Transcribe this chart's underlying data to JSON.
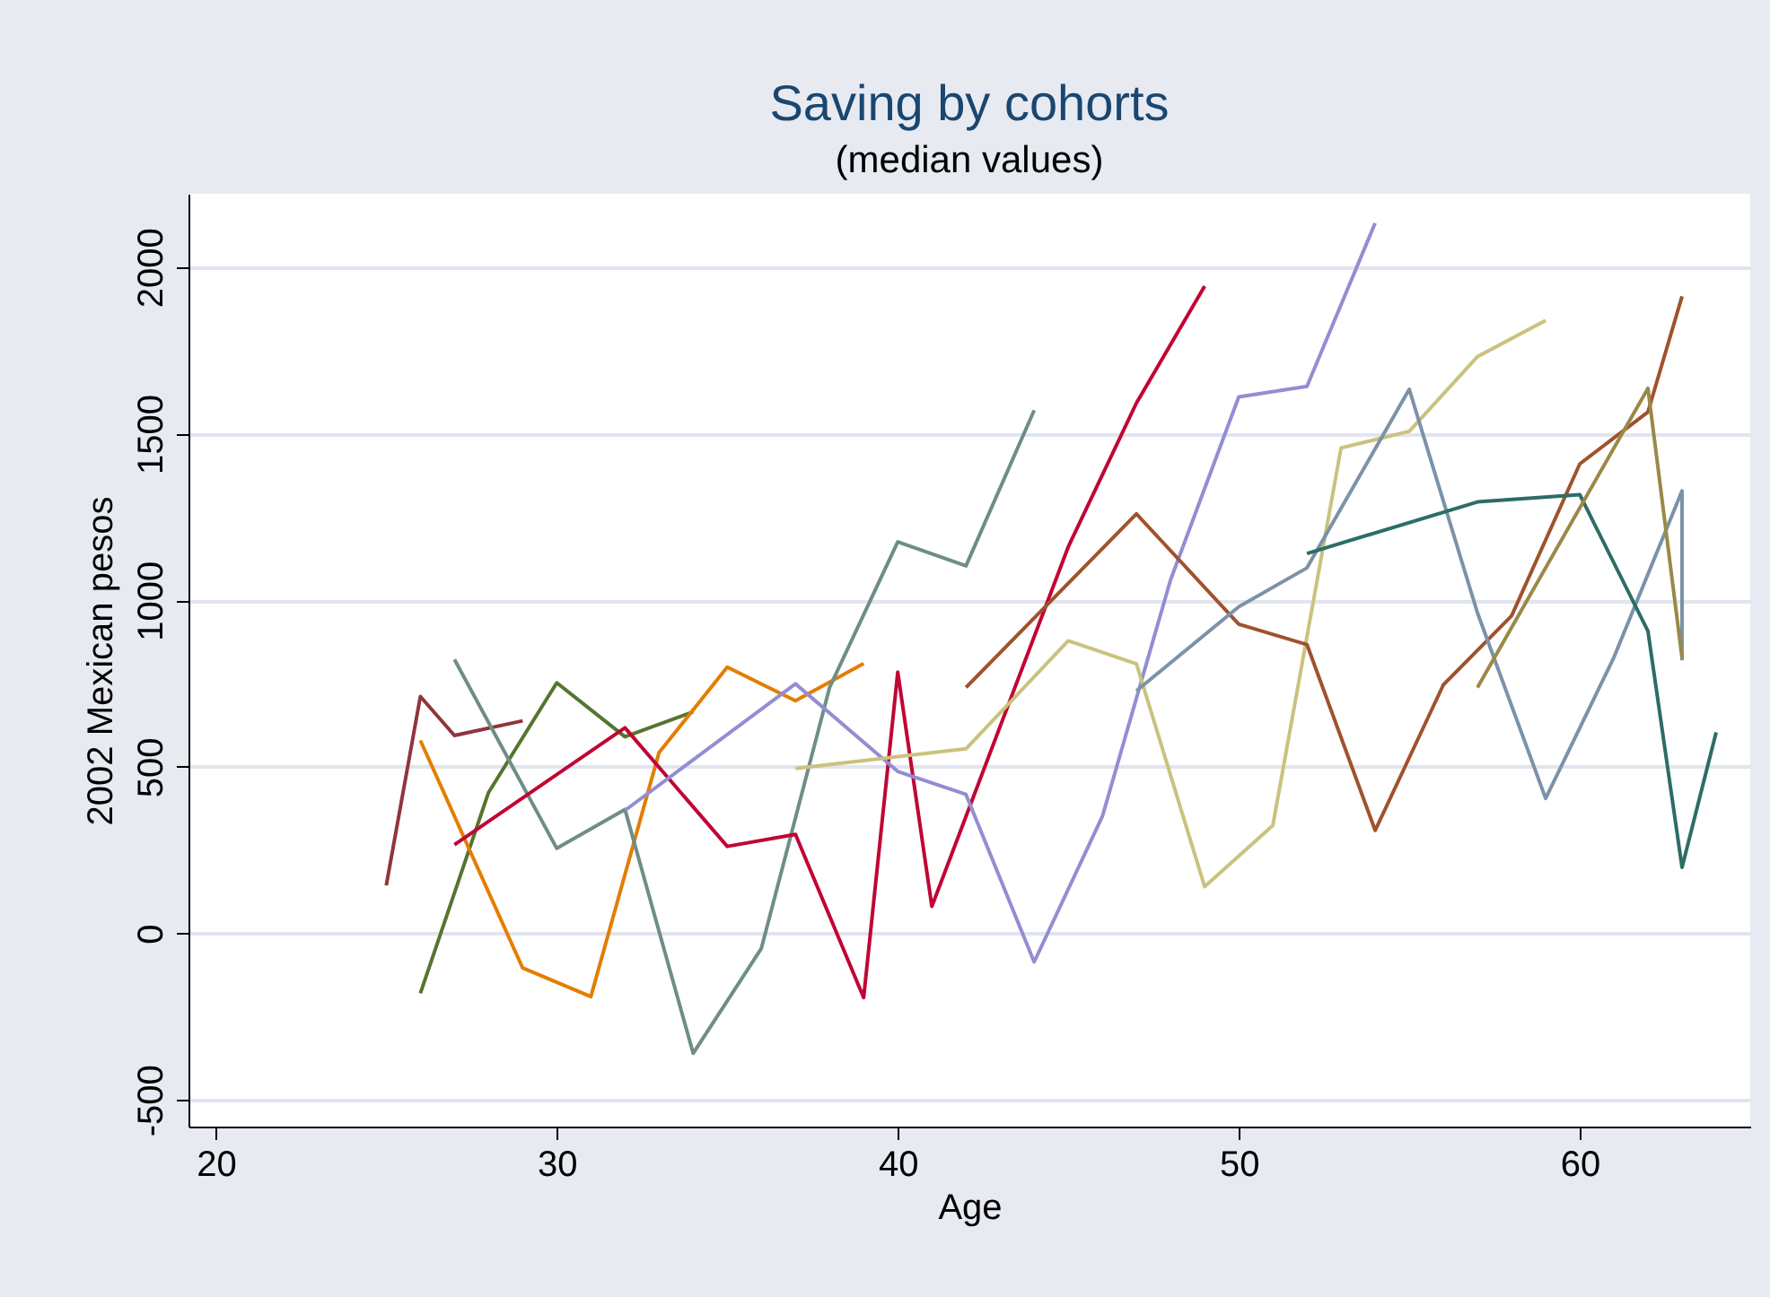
{
  "chart_data": {
    "type": "line",
    "title": "Saving by cohorts",
    "subtitle": "(median values)",
    "xlabel": "Age",
    "ylabel": "2002 Mexican pesos",
    "xlim": [
      19.2,
      65
    ],
    "xticks": [
      20,
      30,
      40,
      50,
      60
    ],
    "ylim": [
      -580,
      2220
    ],
    "yticks": [
      -500,
      0,
      500,
      1000,
      1500,
      2000
    ],
    "grid": "y",
    "legend": false,
    "series": [
      {
        "color": "#90353b",
        "x": [
          25,
          26,
          27,
          29
        ],
        "values": [
          144,
          711,
          594,
          638
        ]
      },
      {
        "color": "#55752f",
        "x": [
          26,
          28,
          30,
          32,
          34
        ],
        "values": [
          -180,
          423,
          752,
          590,
          665
        ]
      },
      {
        "color": "#e37e00",
        "x": [
          26,
          29,
          31,
          33,
          35,
          37,
          39
        ],
        "values": [
          579,
          -104,
          -190,
          543,
          799,
          698,
          810
        ]
      },
      {
        "color": "#6e8e84",
        "x": [
          27,
          30,
          32,
          34,
          36,
          38,
          40,
          42,
          44
        ],
        "values": [
          822,
          255,
          372,
          -360,
          -45,
          738,
          1175,
          1103,
          1570
        ]
      },
      {
        "color": "#c10534",
        "x": [
          27,
          32,
          35,
          37,
          39,
          40,
          41,
          45,
          47,
          49
        ],
        "values": [
          266,
          617,
          261,
          297,
          -193,
          784,
          81,
          1160,
          1592,
          1943
        ]
      },
      {
        "color": "#938dd2",
        "x": [
          32,
          37,
          40,
          42,
          44,
          46,
          48,
          50,
          52,
          54
        ],
        "values": [
          369,
          749,
          486,
          417,
          -86,
          351,
          1061,
          1610,
          1642,
          2132
        ]
      },
      {
        "color": "#cac27e",
        "x": [
          37,
          42,
          45,
          47,
          49,
          51,
          53,
          55,
          57,
          59
        ],
        "values": [
          495,
          554,
          878,
          809,
          140,
          324,
          1457,
          1507,
          1731,
          1840
        ]
      },
      {
        "color": "#a0522d",
        "x": [
          42,
          47,
          50,
          52,
          54,
          56,
          58,
          60,
          62,
          63
        ],
        "values": [
          738,
          1259,
          928,
          867,
          309,
          746,
          953,
          1409,
          1565,
          1912
        ]
      },
      {
        "color": "#7b92a8",
        "x": [
          47,
          50,
          52,
          55,
          57,
          59,
          61,
          63,
          63
        ],
        "values": [
          728,
          980,
          1097,
          1633,
          962,
          405,
          828,
          1328,
          819
        ]
      },
      {
        "color": "#2d6d66",
        "x": [
          52,
          57,
          60,
          62,
          63,
          64
        ],
        "values": [
          1140,
          1295,
          1317,
          907,
          198,
          603
        ]
      },
      {
        "color": "#9c8847",
        "x": [
          57,
          62,
          63
        ],
        "values": [
          738,
          1636,
          827
        ]
      }
    ]
  }
}
